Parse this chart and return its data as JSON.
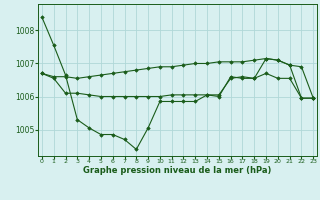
{
  "hours": [
    0,
    1,
    2,
    3,
    4,
    5,
    6,
    7,
    8,
    9,
    10,
    11,
    12,
    13,
    14,
    15,
    16,
    17,
    18,
    19,
    20,
    21,
    22,
    23
  ],
  "line1": [
    1008.4,
    1007.55,
    1006.65,
    1005.3,
    1005.05,
    1004.85,
    1004.85,
    1004.7,
    1004.4,
    1005.05,
    1005.85,
    1005.85,
    1005.85,
    1005.85,
    1006.05,
    1006.0,
    1006.6,
    1006.55,
    1006.55,
    1007.15,
    1007.1,
    1006.95,
    1005.95,
    1005.95
  ],
  "line2": [
    1006.7,
    1006.55,
    1006.1,
    1006.1,
    1006.05,
    1006.0,
    1006.0,
    1006.0,
    1006.0,
    1006.0,
    1006.0,
    1006.05,
    1006.05,
    1006.05,
    1006.05,
    1006.05,
    1006.55,
    1006.6,
    1006.55,
    1006.7,
    1006.55,
    1006.55,
    1005.95,
    1005.95
  ],
  "line3": [
    1006.7,
    1006.6,
    1006.6,
    1006.55,
    1006.6,
    1006.65,
    1006.7,
    1006.75,
    1006.8,
    1006.85,
    1006.9,
    1006.9,
    1006.95,
    1007.0,
    1007.0,
    1007.05,
    1007.05,
    1007.05,
    1007.1,
    1007.15,
    1007.1,
    1006.95,
    1006.9,
    1005.95
  ],
  "line_color": "#1a5c1a",
  "bg_color": "#d8f0f0",
  "grid_color": "#b0d8d8",
  "xlabel": "Graphe pression niveau de la mer (hPa)",
  "ylim": [
    1004.2,
    1008.8
  ],
  "yticks": [
    1005,
    1006,
    1007,
    1008
  ],
  "xticks": [
    0,
    1,
    2,
    3,
    4,
    5,
    6,
    7,
    8,
    9,
    10,
    11,
    12,
    13,
    14,
    15,
    16,
    17,
    18,
    19,
    20,
    21,
    22,
    23
  ]
}
